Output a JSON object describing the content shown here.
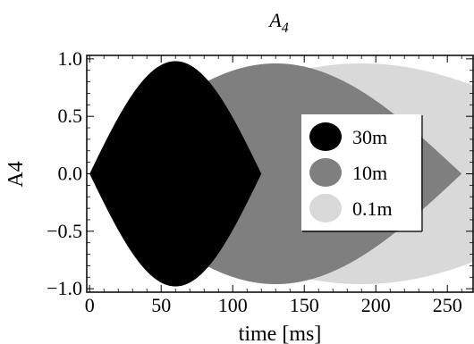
{
  "chart_data": {
    "type": "area",
    "title": "A",
    "title_subscript": "4",
    "xlabel": "time [ms]",
    "ylabel": "A4",
    "xlim": [
      -2,
      268
    ],
    "ylim": [
      -1.03,
      1.03
    ],
    "x_ticks": [
      0,
      50,
      100,
      150,
      200,
      250
    ],
    "x_tick_labels": [
      "0",
      "50",
      "100",
      "150",
      "200",
      "250"
    ],
    "y_ticks": [
      -1.0,
      -0.5,
      0.0,
      0.5,
      1.0
    ],
    "y_tick_labels": [
      "−1.0",
      "−0.5",
      "0.0",
      "0.5",
      "1.0"
    ],
    "grid": false,
    "legend_position": "center-right",
    "series": [
      {
        "name": "0.1m",
        "color": "#d9d9d9",
        "envelope_peak_x": 190,
        "envelope_end_x": 380,
        "amplitude": 0.96
      },
      {
        "name": "10m",
        "color": "#7f7f7f",
        "envelope_peak_x": 130,
        "envelope_end_x": 260,
        "amplitude": 0.96
      },
      {
        "name": "30m",
        "color": "#000000",
        "envelope_peak_x": 60,
        "envelope_end_x": 120,
        "amplitude": 0.98
      }
    ],
    "legend": [
      {
        "label": "30m",
        "color": "#000000"
      },
      {
        "label": "10m",
        "color": "#7f7f7f"
      },
      {
        "label": "0.1m",
        "color": "#d9d9d9"
      }
    ]
  }
}
